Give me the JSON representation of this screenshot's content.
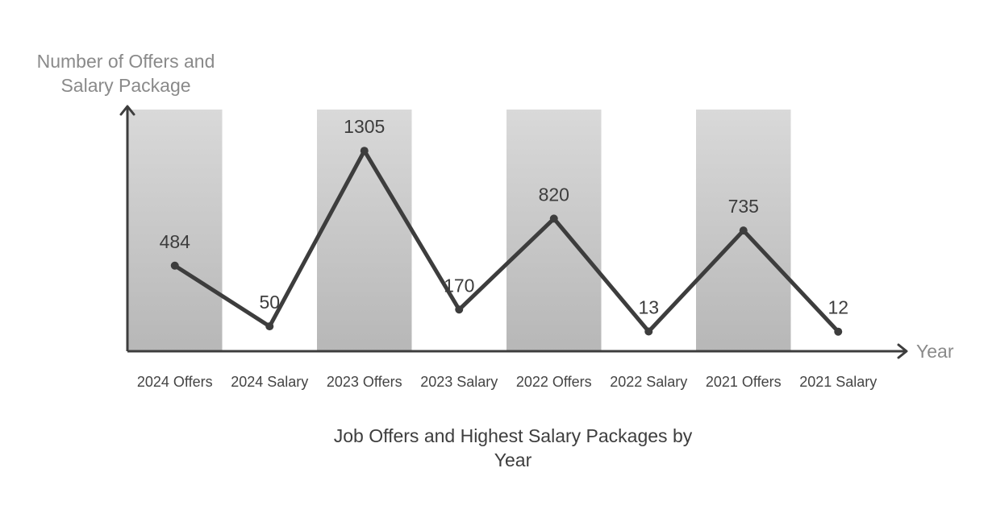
{
  "chart_data": {
    "type": "line",
    "title": [
      "Job Offers and Highest Salary Packages by",
      "Year"
    ],
    "ylabel": [
      "Number of Offers and",
      "Salary Package"
    ],
    "xlabel": "Year",
    "categories": [
      "2024 Offers",
      "2024 Salary",
      "2023 Offers",
      "2023 Salary",
      "2022 Offers",
      "2022 Salary",
      "2021 Offers",
      "2021 Salary"
    ],
    "series": [
      {
        "values": [
          484,
          50,
          1305,
          170,
          820,
          13,
          735,
          12
        ]
      }
    ],
    "value_labels": [
      "484",
      "50",
      "1305",
      "170",
      "820",
      "13",
      "735",
      "12"
    ],
    "banded_categories": [
      "2024 Offers",
      "2023 Offers",
      "2022 Offers",
      "2021 Offers"
    ],
    "ylim": [
      -128,
      1600
    ],
    "grid": false,
    "colors": {
      "line": "#3d3d3d",
      "band_top": "#d9d9d9",
      "band_bottom": "#b7b7b7",
      "axis": "#3d3d3d"
    }
  }
}
